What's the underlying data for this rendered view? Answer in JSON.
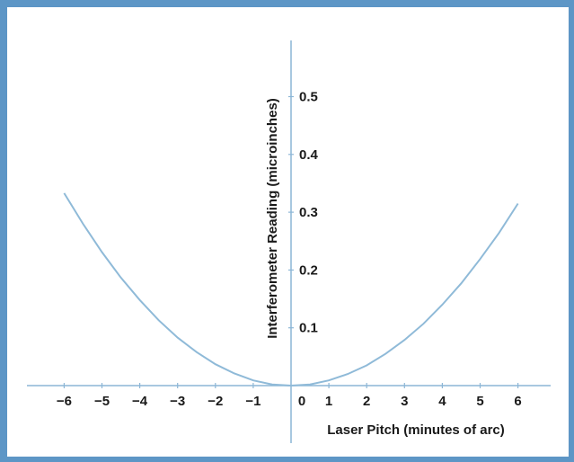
{
  "chart_data": {
    "type": "line",
    "title": "",
    "xlabel": "Laser Pitch (minutes of arc)",
    "ylabel": "Interferometer Reading (microinches)",
    "xlim": [
      -6.7,
      6.7
    ],
    "ylim": [
      0,
      0.6
    ],
    "x_ticks": [
      -6,
      -5,
      -4,
      -3,
      -2,
      -1,
      0,
      1,
      2,
      3,
      4,
      5,
      6
    ],
    "x_tick_labels": [
      "−6",
      "−5",
      "−4",
      "−3",
      "−2",
      "−1",
      "0",
      "1",
      "2",
      "3",
      "4",
      "5",
      "6"
    ],
    "y_ticks": [
      0.1,
      0.2,
      0.3,
      0.4,
      0.5
    ],
    "y_tick_labels": [
      "0.1",
      "0.2",
      "0.3",
      "0.4",
      "0.5"
    ],
    "grid": false,
    "legend": "none",
    "colors": {
      "frame": "#5d96c6",
      "axis": "#8cb6d6",
      "curve": "#8fbad8",
      "text": "#1a1a1a"
    },
    "series": [
      {
        "x": [
          -6,
          -5.5,
          -5,
          -4.5,
          -4,
          -3.5,
          -3,
          -2.5,
          -2,
          -1.5,
          -1,
          -0.5,
          0,
          0.5,
          1,
          1.5,
          2,
          2.5,
          3,
          3.5,
          4,
          4.5,
          5,
          5.5,
          6
        ],
        "y": [
          0.333,
          0.28,
          0.231,
          0.187,
          0.148,
          0.113,
          0.083,
          0.058,
          0.037,
          0.021,
          0.009,
          0.002,
          0,
          0.002,
          0.009,
          0.02,
          0.035,
          0.055,
          0.079,
          0.107,
          0.14,
          0.177,
          0.219,
          0.264,
          0.315
        ]
      }
    ]
  }
}
